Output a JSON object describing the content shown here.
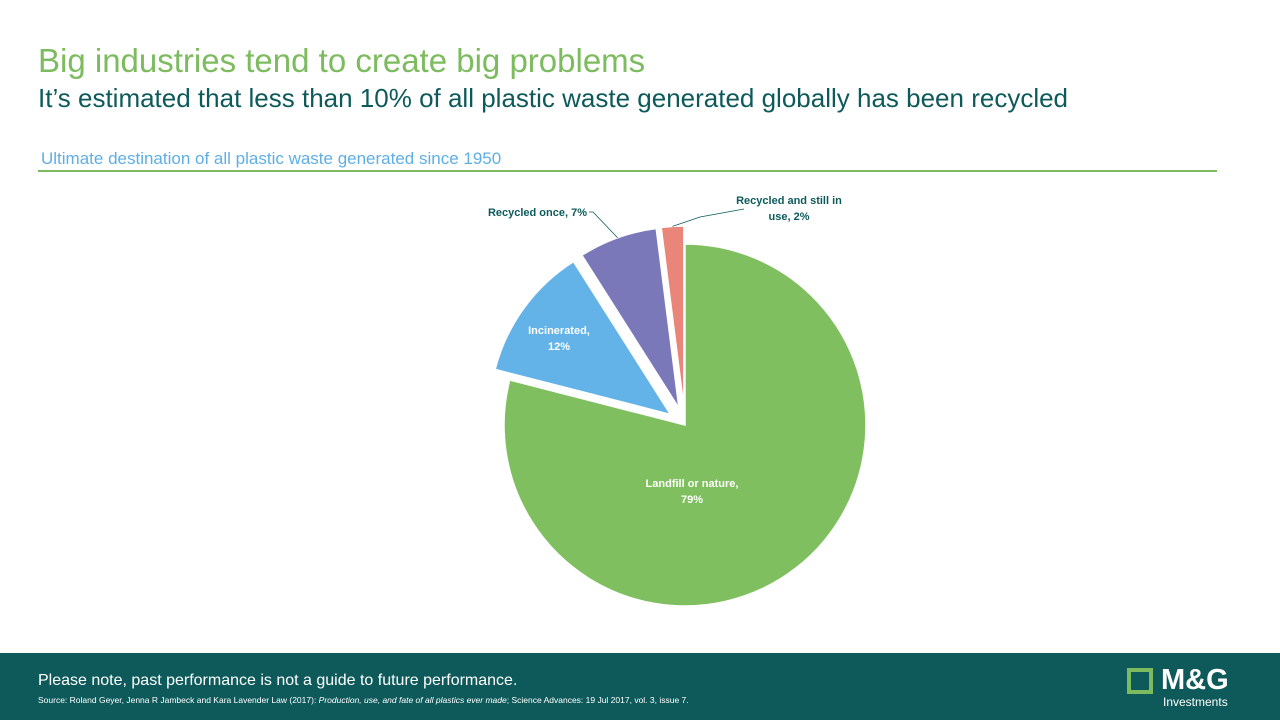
{
  "header": {
    "title": "Big industries tend to create big problems",
    "subtitle": "It’s estimated that less than 10% of all plastic waste generated globally has been recycled"
  },
  "chart_caption": "Ultimate destination of all plastic waste generated since 1950",
  "chart_data": {
    "type": "pie",
    "slices": [
      {
        "label": "Landfill or nature",
        "value": 79,
        "value_label": "79%",
        "color": "#7fbf5f",
        "label_color": "#ffffff",
        "label_position": "inside",
        "exploded": false
      },
      {
        "label": "Incinerated",
        "value": 12,
        "value_label": "12%",
        "color": "#63b3e8",
        "label_color": "#ffffff",
        "label_position": "inside",
        "exploded": true
      },
      {
        "label": "Recycled once",
        "value": 7,
        "value_label": "7%",
        "color": "#7b78ba",
        "label_color": "#0e5a5b",
        "label_position": "outside",
        "exploded": true
      },
      {
        "label": "Recycled and still in use",
        "value": 2,
        "value_label": "2%",
        "color": "#e98679",
        "label_color": "#0e5a5b",
        "label_position": "outside",
        "exploded": true
      }
    ],
    "labels_display": [
      [
        "Landfill or nature,",
        "79%"
      ],
      [
        "Incinerated,",
        "12%"
      ],
      [
        "Recycled once, 7%"
      ],
      [
        "Recycled and still in",
        "use, 2%"
      ]
    ],
    "start": "12 o'clock",
    "direction": "clockwise",
    "legend": "none",
    "slice_border_color": "#ffffff"
  },
  "footer": {
    "note": "Please note, past performance is not a guide to future performance.",
    "source_prefix": "Source: Roland Geyer, Jenna R Jambeck and Kara Lavender Law (2017): ",
    "source_title": "Production, use, and fate of all plastics ever made",
    "source_suffix": "; Science Advances: 19 Jul 2017, vol. 3, issue 7.",
    "background": "#0e5a5b"
  },
  "logo": {
    "wordmark": "M&G",
    "subtext": "Investments",
    "square_color": "#7dbb5f",
    "icon": "mg-square-logo-icon"
  },
  "colors": {
    "title": "#7dbb5f",
    "subtitle": "#0e5a5b",
    "caption": "#5eaee6",
    "rule": "#7dbb5f"
  }
}
